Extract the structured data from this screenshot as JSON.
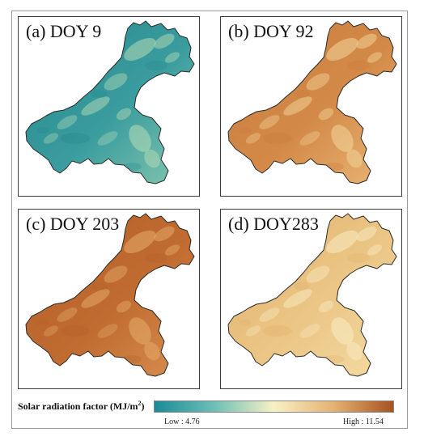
{
  "panels": [
    {
      "label": "(a) DOY 9",
      "base_color": "#3a9c9e",
      "dark_color": "#24888d",
      "light_color": "#86c8b0",
      "highlight_color": "#b7dcb6"
    },
    {
      "label": "(b) DOY 92",
      "base_color": "#d38a48",
      "dark_color": "#c97a3a",
      "light_color": "#eab777",
      "highlight_color": "#f2d79c"
    },
    {
      "label": "(c) DOY 203",
      "base_color": "#c06b30",
      "dark_color": "#b35f28",
      "light_color": "#d8904f",
      "highlight_color": "#e6ad6c"
    },
    {
      "label": "(d) DOY283",
      "base_color": "#ebc686",
      "dark_color": "#e2b06a",
      "light_color": "#f4dca4",
      "highlight_color": "#f8ecc4"
    }
  ],
  "legend": {
    "title_text": "Solar radiation factor (MJ/m",
    "title_sup": "2",
    "title_end": ")",
    "low_label": "Low : 4.76",
    "high_label": "High : 11.54",
    "gradient_colors": [
      "#1a8a96",
      "#6dbfb6",
      "#f7f1c4",
      "#e6b173",
      "#a75220"
    ]
  }
}
